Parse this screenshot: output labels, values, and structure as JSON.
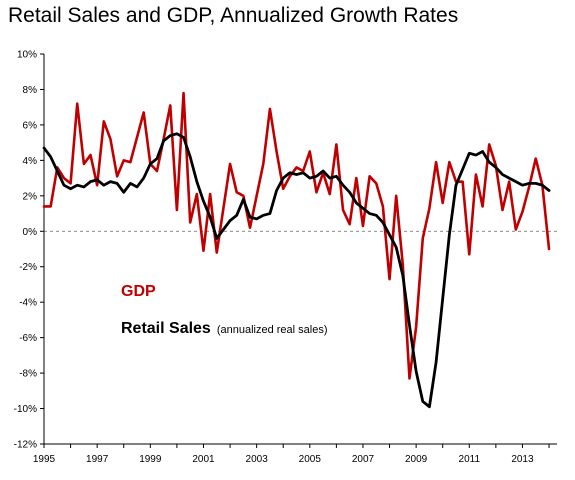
{
  "chart_data": {
    "type": "line",
    "title": "Retail Sales and GDP, Annualized Growth Rates",
    "xlabel": "",
    "ylabel": "",
    "xlim": [
      1995,
      2014.3
    ],
    "ylim": [
      -12,
      10
    ],
    "y_ticks": [
      10,
      8,
      6,
      4,
      2,
      0,
      -2,
      -4,
      -6,
      -8,
      -10,
      -12
    ],
    "y_tick_labels": [
      "10%",
      "8%",
      "6%",
      "4%",
      "2%",
      "0%",
      "-2%",
      "-4%",
      "-6%",
      "-8%",
      "-10%",
      "-12%"
    ],
    "x_ticks": [
      1995,
      1997,
      1999,
      2001,
      2003,
      2005,
      2007,
      2009,
      2011,
      2013
    ],
    "x_tick_labels": [
      "1995",
      "1997",
      "1999",
      "2001",
      "2003",
      "2005",
      "2007",
      "2009",
      "2011",
      "2013"
    ],
    "zero_line": "dashed",
    "grid": false,
    "legend": {
      "placement": "middle-left",
      "entries": [
        {
          "series": "GDP",
          "label": "GDP",
          "note": ""
        },
        {
          "series": "Retail Sales",
          "label": "Retail Sales",
          "note": "(annualized real sales)"
        }
      ]
    },
    "series": [
      {
        "name": "GDP",
        "color": "#c00000",
        "x": [
          1995.0,
          1995.25,
          1995.5,
          1995.75,
          1996.0,
          1996.25,
          1996.5,
          1996.75,
          1997.0,
          1997.25,
          1997.5,
          1997.75,
          1998.0,
          1998.25,
          1998.5,
          1998.75,
          1999.0,
          1999.25,
          1999.5,
          1999.75,
          2000.0,
          2000.25,
          2000.5,
          2000.75,
          2001.0,
          2001.25,
          2001.5,
          2001.75,
          2002.0,
          2002.25,
          2002.5,
          2002.75,
          2003.0,
          2003.25,
          2003.5,
          2003.75,
          2004.0,
          2004.25,
          2004.5,
          2004.75,
          2005.0,
          2005.25,
          2005.5,
          2005.75,
          2006.0,
          2006.25,
          2006.5,
          2006.75,
          2007.0,
          2007.25,
          2007.5,
          2007.75,
          2008.0,
          2008.25,
          2008.5,
          2008.75,
          2009.0,
          2009.25,
          2009.5,
          2009.75,
          2010.0,
          2010.25,
          2010.5,
          2010.75,
          2011.0,
          2011.25,
          2011.5,
          2011.75,
          2012.0,
          2012.25,
          2012.5,
          2012.75,
          2013.0,
          2013.25,
          2013.5,
          2013.75,
          2014.0
        ],
        "values": [
          1.4,
          1.4,
          3.6,
          3.0,
          2.7,
          7.2,
          3.8,
          4.3,
          2.6,
          6.2,
          5.2,
          3.1,
          4.0,
          3.9,
          5.3,
          6.7,
          3.8,
          3.4,
          5.2,
          7.1,
          1.2,
          7.8,
          0.5,
          2.1,
          -1.1,
          2.1,
          -1.2,
          1.3,
          3.8,
          2.2,
          2.0,
          0.2,
          2.0,
          3.8,
          6.9,
          4.5,
          2.4,
          3.1,
          3.6,
          3.4,
          4.5,
          2.2,
          3.3,
          2.1,
          4.9,
          1.2,
          0.4,
          3.0,
          0.3,
          3.1,
          2.7,
          1.4,
          -2.7,
          2.0,
          -1.9,
          -8.3,
          -5.4,
          -0.4,
          1.3,
          3.9,
          1.6,
          3.9,
          2.8,
          2.8,
          -1.3,
          3.2,
          1.4,
          4.9,
          3.7,
          1.2,
          2.8,
          0.1,
          1.1,
          2.5,
          4.1,
          2.6,
          -1.0
        ]
      },
      {
        "name": "Retail Sales",
        "color": "#000000",
        "x": [
          1995.0,
          1995.25,
          1995.5,
          1995.75,
          1996.0,
          1996.25,
          1996.5,
          1996.75,
          1997.0,
          1997.25,
          1997.5,
          1997.75,
          1998.0,
          1998.25,
          1998.5,
          1998.75,
          1999.0,
          1999.25,
          1999.5,
          1999.75,
          2000.0,
          2000.25,
          2000.5,
          2000.75,
          2001.0,
          2001.25,
          2001.5,
          2001.75,
          2002.0,
          2002.25,
          2002.5,
          2002.75,
          2003.0,
          2003.25,
          2003.5,
          2003.75,
          2004.0,
          2004.25,
          2004.5,
          2004.75,
          2005.0,
          2005.25,
          2005.5,
          2005.75,
          2006.0,
          2006.25,
          2006.5,
          2006.75,
          2007.0,
          2007.25,
          2007.5,
          2007.75,
          2008.0,
          2008.25,
          2008.5,
          2008.75,
          2009.0,
          2009.25,
          2009.5,
          2009.75,
          2010.0,
          2010.25,
          2010.5,
          2010.75,
          2011.0,
          2011.25,
          2011.5,
          2011.75,
          2012.0,
          2012.25,
          2012.5,
          2012.75,
          2013.0,
          2013.25,
          2013.5,
          2013.75,
          2014.0
        ],
        "values": [
          4.7,
          4.2,
          3.4,
          2.6,
          2.4,
          2.6,
          2.5,
          2.8,
          2.9,
          2.6,
          2.8,
          2.7,
          2.2,
          2.7,
          2.5,
          3.0,
          3.8,
          4.1,
          5.1,
          5.4,
          5.5,
          5.3,
          4.2,
          2.8,
          1.7,
          0.8,
          -0.4,
          0.1,
          0.6,
          0.9,
          1.8,
          0.8,
          0.7,
          0.9,
          1.0,
          2.3,
          3.0,
          3.3,
          3.2,
          3.3,
          3.0,
          3.1,
          3.4,
          3.0,
          3.1,
          2.6,
          2.2,
          1.6,
          1.3,
          1.0,
          0.9,
          0.5,
          -0.2,
          -0.9,
          -2.5,
          -5.3,
          -7.9,
          -9.6,
          -9.9,
          -7.4,
          -3.8,
          -0.2,
          2.6,
          3.5,
          4.4,
          4.3,
          4.5,
          3.9,
          3.6,
          3.2,
          3.0,
          2.8,
          2.6,
          2.7,
          2.7,
          2.6,
          2.3
        ]
      }
    ]
  }
}
